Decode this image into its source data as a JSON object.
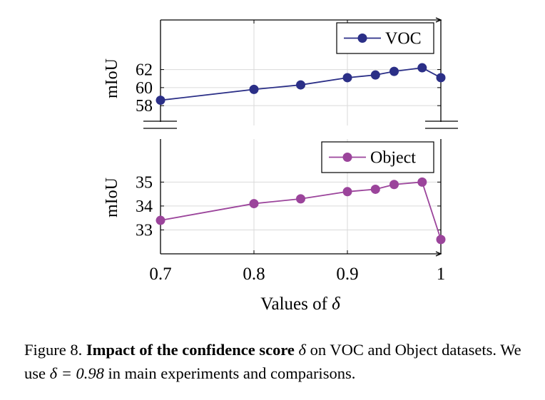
{
  "chart_data": [
    {
      "type": "line",
      "ylabel": "mIoU",
      "x": [
        0.7,
        0.8,
        0.85,
        0.9,
        0.93,
        0.95,
        0.98,
        1.0
      ],
      "series": [
        {
          "name": "VOC",
          "values": [
            58.6,
            59.8,
            60.3,
            61.1,
            61.4,
            61.8,
            62.2,
            61.1
          ],
          "color": "#2b2f87"
        }
      ],
      "yticks": [
        "58",
        "60",
        "62"
      ],
      "ytick_values": [
        58,
        60,
        62
      ],
      "ylim": [
        55.8,
        67.5
      ],
      "legend_placement": "top-right",
      "grid": true,
      "axis_break": "bottom"
    },
    {
      "type": "line",
      "ylabel": "mIoU",
      "xlabel": "Values of δ",
      "x": [
        0.7,
        0.8,
        0.85,
        0.9,
        0.93,
        0.95,
        0.98,
        1.0
      ],
      "series": [
        {
          "name": "Object",
          "values": [
            33.4,
            34.1,
            34.3,
            34.6,
            34.7,
            34.9,
            35.0,
            32.6
          ],
          "color": "#9b449b"
        }
      ],
      "xticks": [
        "0.7",
        "0.8",
        "0.9",
        "1"
      ],
      "xtick_values": [
        0.7,
        0.8,
        0.9,
        1.0
      ],
      "yticks": [
        "33",
        "34",
        "35"
      ],
      "ytick_values": [
        33,
        34,
        35
      ],
      "ylim": [
        32.0,
        36.8
      ],
      "legend_placement": "top-right",
      "grid": true,
      "axis_break": "top"
    }
  ],
  "caption": {
    "prefix": "Figure 8.",
    "bold": "Impact of the confidence score",
    "symbol": "δ",
    "after_symbol": " on VOC and Object datasets. We use ",
    "equation": "δ = 0.98",
    "suffix": " in main experiments and comparisons."
  }
}
